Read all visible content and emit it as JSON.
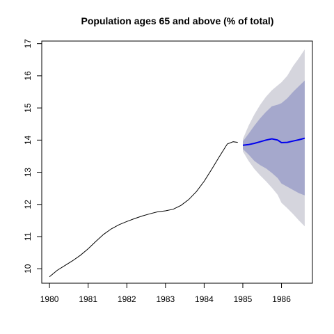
{
  "chart_data": {
    "type": "line",
    "title": "Population ages 65 and above (% of total)",
    "xlim": [
      1979.8,
      1986.8
    ],
    "ylim": [
      9.55,
      17.08
    ],
    "x_ticks": [
      1980,
      1981,
      1982,
      1983,
      1984,
      1985,
      1986
    ],
    "x_tick_labels": [
      "1980",
      "1981",
      "1982",
      "1983",
      "1984",
      "1985",
      "1986"
    ],
    "y_ticks": [
      10,
      11,
      12,
      13,
      14,
      15,
      16,
      17
    ],
    "y_tick_labels": [
      "10",
      "11",
      "12",
      "13",
      "14",
      "15",
      "16",
      "17"
    ],
    "grid": false,
    "colors": {
      "history": "#000000",
      "forecast": "#0000ee",
      "band95": "#d5d5dd",
      "band80": "#a5a8cc"
    },
    "history": {
      "x": [
        1980.0,
        1980.2,
        1980.4,
        1980.6,
        1980.8,
        1981.0,
        1981.2,
        1981.4,
        1981.6,
        1981.8,
        1982.0,
        1982.2,
        1982.4,
        1982.6,
        1982.8,
        1983.0,
        1983.2,
        1983.4,
        1983.6,
        1983.8,
        1984.0,
        1984.2,
        1984.4,
        1984.6,
        1984.75,
        1984.87
      ],
      "y": [
        9.75,
        9.95,
        10.1,
        10.25,
        10.42,
        10.62,
        10.85,
        11.07,
        11.24,
        11.37,
        11.47,
        11.56,
        11.64,
        11.71,
        11.77,
        11.8,
        11.85,
        11.97,
        12.15,
        12.4,
        12.72,
        13.1,
        13.5,
        13.88,
        13.95,
        13.93
      ]
    },
    "forecast": {
      "x": [
        1985.0,
        1985.15,
        1985.3,
        1985.45,
        1985.6,
        1985.75,
        1985.9,
        1986.0,
        1986.15,
        1986.3,
        1986.45,
        1986.6
      ],
      "mean": [
        13.84,
        13.86,
        13.9,
        13.95,
        14.0,
        14.04,
        14.0,
        13.92,
        13.93,
        13.97,
        14.01,
        14.06
      ],
      "lo80": [
        13.72,
        13.55,
        13.35,
        13.22,
        13.12,
        12.98,
        12.82,
        12.65,
        12.55,
        12.45,
        12.35,
        12.28
      ],
      "hi80": [
        13.96,
        14.2,
        14.45,
        14.68,
        14.88,
        15.05,
        15.1,
        15.15,
        15.3,
        15.5,
        15.68,
        15.85
      ],
      "lo95": [
        13.65,
        13.35,
        13.1,
        12.9,
        12.72,
        12.52,
        12.3,
        12.05,
        11.88,
        11.7,
        11.5,
        11.32
      ],
      "hi95": [
        14.03,
        14.45,
        14.8,
        15.1,
        15.35,
        15.55,
        15.7,
        15.8,
        16.0,
        16.3,
        16.55,
        16.82
      ]
    }
  }
}
